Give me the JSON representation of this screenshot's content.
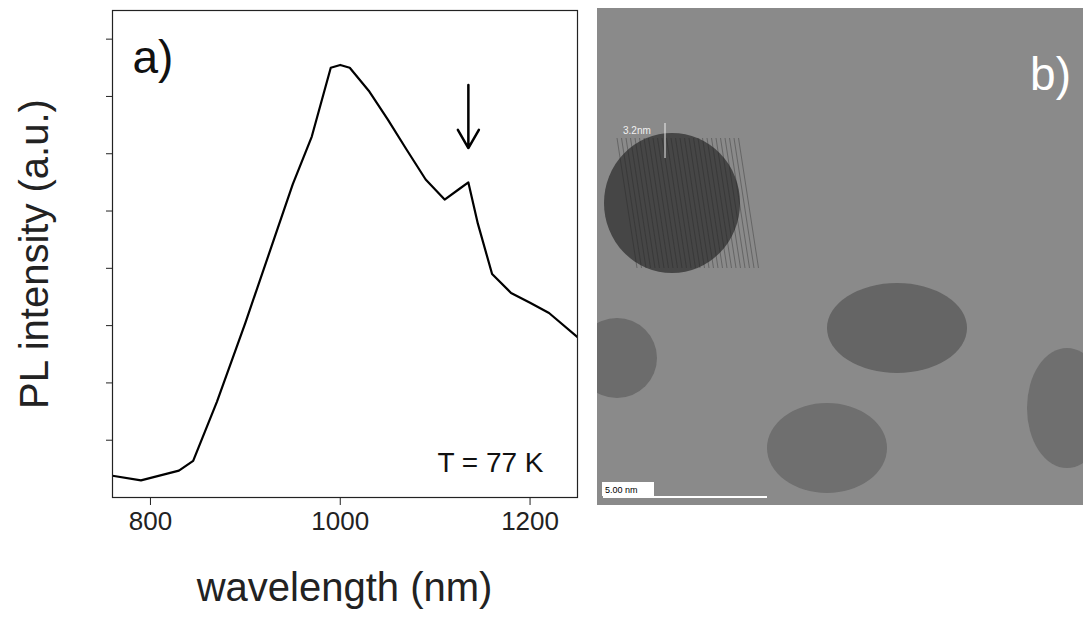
{
  "chart_data": {
    "type": "line",
    "x_label": "wavelength (nm)",
    "y_label": "PL intensity (a.u.)",
    "x": [
      760,
      790,
      830,
      845,
      870,
      900,
      930,
      950,
      970,
      990,
      1000,
      1010,
      1030,
      1050,
      1070,
      1090,
      1110,
      1125,
      1135,
      1145,
      1160,
      1180,
      1200,
      1220,
      1250
    ],
    "values": [
      0.38,
      0.3,
      0.47,
      0.64,
      1.67,
      3.05,
      4.5,
      5.47,
      6.3,
      7.5,
      7.55,
      7.5,
      7.1,
      6.6,
      6.07,
      5.55,
      5.2,
      5.38,
      5.5,
      4.78,
      3.9,
      3.57,
      3.4,
      3.22,
      2.8
    ],
    "color": "#000000",
    "xlim": [
      760,
      1250
    ],
    "xticks": [
      800,
      1000,
      1200
    ],
    "ylim": [
      0,
      8.5
    ],
    "yticks": [
      1,
      2,
      3,
      4,
      5,
      6,
      7,
      8
    ],
    "tick_labels": "x",
    "grid": false,
    "annotations": [
      {
        "text": "a)"
      },
      {
        "text": "T = 77 K"
      },
      {
        "type": "arrow",
        "x": 1135,
        "y1": 7.2,
        "y2": 6.1
      }
    ]
  },
  "image_panel": {
    "label": "b)",
    "annotations": [
      "3.2nm",
      "5.00 nm"
    ]
  }
}
